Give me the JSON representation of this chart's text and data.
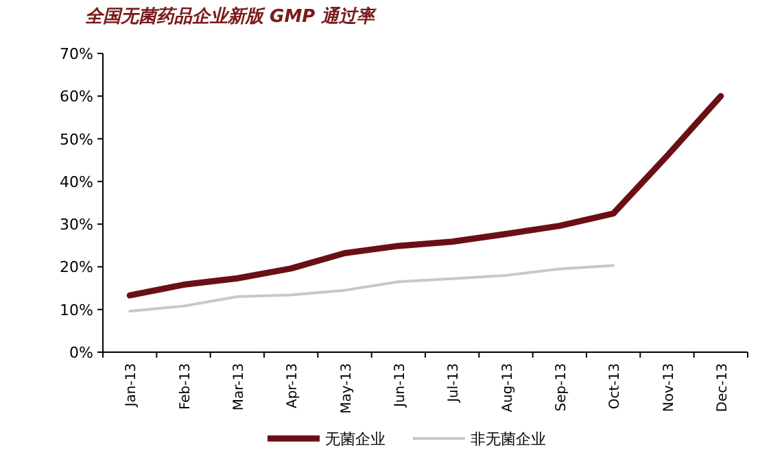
{
  "chart_data": {
    "type": "line",
    "title": "全国无菌药品企业新版 GMP 通过率",
    "categories": [
      "Jan-13",
      "Feb-13",
      "Mar-13",
      "Apr-13",
      "May-13",
      "Jun-13",
      "Jul-13",
      "Aug-13",
      "Sep-13",
      "Oct-13",
      "Nov-13",
      "Dec-13"
    ],
    "series": [
      {
        "name": "无菌企业",
        "color": "#6b0f16",
        "values": [
          13.3,
          15.8,
          17.3,
          19.6,
          23.2,
          24.9,
          25.9,
          27.7,
          29.6,
          32.5,
          46,
          60
        ]
      },
      {
        "name": "非无菌企业",
        "color": "#c8c8c8",
        "values": [
          9.6,
          10.8,
          13.0,
          13.4,
          14.5,
          16.5,
          17.2,
          18.0,
          19.5,
          20.3,
          null,
          null
        ]
      }
    ],
    "ylim": [
      0,
      70
    ],
    "yticks": [
      {
        "value": 0,
        "label": "0%"
      },
      {
        "value": 10,
        "label": "10%"
      },
      {
        "value": 20,
        "label": "20%"
      },
      {
        "value": 30,
        "label": "30%"
      },
      {
        "value": 40,
        "label": "40%"
      },
      {
        "value": 50,
        "label": "50%"
      },
      {
        "value": 60,
        "label": "60%"
      },
      {
        "value": 70,
        "label": "70%"
      }
    ],
    "legend": "bottom",
    "grid": false,
    "marker": "none"
  }
}
